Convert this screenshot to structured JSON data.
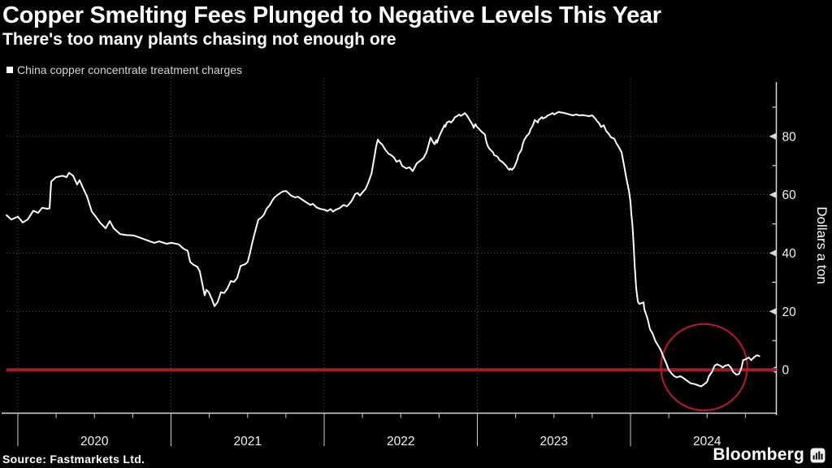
{
  "header": {
    "title": "Copper Smelting Fees Plunged to Negative Levels This Year",
    "subtitle": "There's too many plants chasing not enough ore"
  },
  "legend": {
    "series_label": "China copper concentrate treatment charges"
  },
  "footer": {
    "source_label": "Source: Fastmarkets Ltd.",
    "brand_label": "Bloomberg"
  },
  "colors": {
    "background": "#000000",
    "series_line": "#ffffff",
    "zero_line": "#a3182b",
    "annotation_circle": "#bc1636",
    "grid": "#4e4e4e",
    "axis": "#d9d9d9",
    "tick_label": "#f2f2f2",
    "year_tick": "#cfcfcf"
  },
  "chart_data": {
    "type": "line",
    "title": "China copper concentrate treatment charges",
    "xlabel": "",
    "ylabel": "Dollars a ton",
    "x_range": [
      2019.926,
      2024.952
    ],
    "y_range": [
      -14.86,
      100
    ],
    "y_ticks": [
      0,
      20,
      40,
      60,
      80
    ],
    "y_minor_ticks": [
      10,
      30,
      50,
      70,
      90
    ],
    "x_year_ticks": [
      2020,
      2021,
      2022,
      2023,
      2024
    ],
    "x_tick_labels": [
      "2020",
      "2021",
      "2022",
      "2023",
      "2024"
    ],
    "grid": "dotted",
    "legend_position": "top-left",
    "zero_line": {
      "value": 0
    },
    "annotation_circle": {
      "x": 2024.48,
      "y": 0.9,
      "radius_y_units": 14.8
    },
    "series": [
      {
        "name": "China copper concentrate treatment charges",
        "points": [
          [
            2019.926,
            53
          ],
          [
            2019.958,
            51.5
          ],
          [
            2020.0,
            52.5
          ],
          [
            2020.032,
            50.5
          ],
          [
            2020.064,
            51.5
          ],
          [
            2020.101,
            54.5
          ],
          [
            2020.133,
            53.8
          ],
          [
            2020.159,
            55.5
          ],
          [
            2020.191,
            55.2
          ],
          [
            2020.207,
            55.3
          ],
          [
            2020.218,
            64.5
          ],
          [
            2020.249,
            66
          ],
          [
            2020.292,
            66.5
          ],
          [
            2020.318,
            66
          ],
          [
            2020.334,
            67.5
          ],
          [
            2020.361,
            66.5
          ],
          [
            2020.387,
            63.5
          ],
          [
            2020.403,
            65
          ],
          [
            2020.424,
            62.5
          ],
          [
            2020.451,
            59.5
          ],
          [
            2020.483,
            54.2
          ],
          [
            2020.509,
            52.5
          ],
          [
            2020.536,
            50.5
          ],
          [
            2020.573,
            48.5
          ],
          [
            2020.6,
            51
          ],
          [
            2020.626,
            48.5
          ],
          [
            2020.668,
            46.5
          ],
          [
            2020.706,
            46.2
          ],
          [
            2020.759,
            46
          ],
          [
            2020.785,
            45.5
          ],
          [
            2020.838,
            44.5
          ],
          [
            2020.891,
            43.5
          ],
          [
            2020.923,
            44
          ],
          [
            2020.971,
            43.2
          ],
          [
            2021.003,
            43.5
          ],
          [
            2021.05,
            43
          ],
          [
            2021.082,
            41.5
          ],
          [
            2021.109,
            40.8
          ],
          [
            2021.125,
            37
          ],
          [
            2021.146,
            36
          ],
          [
            2021.172,
            35.3
          ],
          [
            2021.188,
            33.7
          ],
          [
            2021.204,
            29.6
          ],
          [
            2021.22,
            25.5
          ],
          [
            2021.231,
            27.4
          ],
          [
            2021.247,
            26.6
          ],
          [
            2021.268,
            24.1
          ],
          [
            2021.284,
            21.8
          ],
          [
            2021.305,
            23.3
          ],
          [
            2021.326,
            26.6
          ],
          [
            2021.347,
            26.3
          ],
          [
            2021.369,
            27.9
          ],
          [
            2021.39,
            30.4
          ],
          [
            2021.411,
            30.1
          ],
          [
            2021.432,
            31.5
          ],
          [
            2021.454,
            35.6
          ],
          [
            2021.485,
            36.2
          ],
          [
            2021.501,
            37
          ],
          [
            2021.517,
            40.3
          ],
          [
            2021.528,
            43
          ],
          [
            2021.544,
            46.3
          ],
          [
            2021.57,
            51.4
          ],
          [
            2021.592,
            52.3
          ],
          [
            2021.607,
            53.2
          ],
          [
            2021.623,
            55.1
          ],
          [
            2021.645,
            56.5
          ],
          [
            2021.66,
            57.9
          ],
          [
            2021.676,
            59.1
          ],
          [
            2021.703,
            60.2
          ],
          [
            2021.729,
            61.1
          ],
          [
            2021.751,
            61.3
          ],
          [
            2021.766,
            60.6
          ],
          [
            2021.783,
            59.7
          ],
          [
            2021.809,
            59.1
          ],
          [
            2021.83,
            59.3
          ],
          [
            2021.857,
            58.3
          ],
          [
            2021.883,
            57.4
          ],
          [
            2021.91,
            56.5
          ],
          [
            2021.926,
            56.9
          ],
          [
            2021.952,
            55.6
          ],
          [
            2021.979,
            55.1
          ],
          [
            2022.005,
            54.8
          ],
          [
            2022.021,
            54.4
          ],
          [
            2022.042,
            55.1
          ],
          [
            2022.058,
            54.2
          ],
          [
            2022.074,
            54.8
          ],
          [
            2022.101,
            55.4
          ],
          [
            2022.127,
            56.5
          ],
          [
            2022.148,
            56
          ],
          [
            2022.164,
            56.9
          ],
          [
            2022.18,
            57.9
          ],
          [
            2022.202,
            60.2
          ],
          [
            2022.218,
            60.6
          ],
          [
            2022.233,
            59.7
          ],
          [
            2022.255,
            61.1
          ],
          [
            2022.27,
            62
          ],
          [
            2022.286,
            63.9
          ],
          [
            2022.308,
            67.1
          ],
          [
            2022.324,
            71.8
          ],
          [
            2022.339,
            76.5
          ],
          [
            2022.35,
            78.9
          ],
          [
            2022.361,
            78
          ],
          [
            2022.377,
            77.3
          ],
          [
            2022.398,
            75.5
          ],
          [
            2022.419,
            74.1
          ],
          [
            2022.44,
            73.5
          ],
          [
            2022.456,
            72.7
          ],
          [
            2022.472,
            71.3
          ],
          [
            2022.493,
            71.8
          ],
          [
            2022.509,
            69.9
          ],
          [
            2022.536,
            69
          ],
          [
            2022.557,
            69.4
          ],
          [
            2022.578,
            68.1
          ],
          [
            2022.605,
            70.8
          ],
          [
            2022.631,
            71.8
          ],
          [
            2022.647,
            72.5
          ],
          [
            2022.668,
            74.5
          ],
          [
            2022.684,
            77.5
          ],
          [
            2022.695,
            79.6
          ],
          [
            2022.711,
            78
          ],
          [
            2022.721,
            77.3
          ],
          [
            2022.732,
            78.7
          ],
          [
            2022.737,
            77.8
          ],
          [
            2022.748,
            79.6
          ],
          [
            2022.764,
            81.5
          ],
          [
            2022.785,
            83.8
          ],
          [
            2022.79,
            83.3
          ],
          [
            2022.801,
            84.7
          ],
          [
            2022.817,
            85.2
          ],
          [
            2022.828,
            84.7
          ],
          [
            2022.843,
            85.6
          ],
          [
            2022.854,
            86.6
          ],
          [
            2022.87,
            87
          ],
          [
            2022.881,
            87.5
          ],
          [
            2022.891,
            87
          ],
          [
            2022.907,
            87.5
          ],
          [
            2022.918,
            88
          ],
          [
            2022.934,
            87
          ],
          [
            2022.944,
            86.1
          ],
          [
            2022.96,
            84.7
          ],
          [
            2022.971,
            83.8
          ],
          [
            2022.976,
            82.9
          ],
          [
            2022.987,
            84.2
          ],
          [
            2022.997,
            83.3
          ],
          [
            2023.013,
            82.4
          ],
          [
            2023.029,
            81.5
          ],
          [
            2023.05,
            80.6
          ],
          [
            2023.056,
            78.7
          ],
          [
            2023.066,
            76.9
          ],
          [
            2023.077,
            75.9
          ],
          [
            2023.093,
            75
          ],
          [
            2023.103,
            74.5
          ],
          [
            2023.109,
            73.6
          ],
          [
            2023.13,
            73.1
          ],
          [
            2023.135,
            72.7
          ],
          [
            2023.146,
            71.8
          ],
          [
            2023.162,
            71.3
          ],
          [
            2023.172,
            70.8
          ],
          [
            2023.188,
            69.9
          ],
          [
            2023.199,
            69
          ],
          [
            2023.209,
            68.5
          ],
          [
            2023.215,
            69
          ],
          [
            2023.225,
            68.5
          ],
          [
            2023.241,
            69.4
          ],
          [
            2023.252,
            70.8
          ],
          [
            2023.262,
            72.2
          ],
          [
            2023.268,
            73.6
          ],
          [
            2023.278,
            74.5
          ],
          [
            2023.289,
            75.5
          ],
          [
            2023.294,
            76.9
          ],
          [
            2023.305,
            78.7
          ],
          [
            2023.316,
            79.6
          ],
          [
            2023.321,
            80.1
          ],
          [
            2023.332,
            80.6
          ],
          [
            2023.342,
            81.5
          ],
          [
            2023.347,
            82.4
          ],
          [
            2023.358,
            83.3
          ],
          [
            2023.369,
            84.7
          ],
          [
            2023.374,
            85.6
          ],
          [
            2023.385,
            85.2
          ],
          [
            2023.395,
            84.7
          ],
          [
            2023.4,
            85.6
          ],
          [
            2023.422,
            86.6
          ],
          [
            2023.427,
            86.1
          ],
          [
            2023.448,
            86.6
          ],
          [
            2023.454,
            87
          ],
          [
            2023.475,
            87.5
          ],
          [
            2023.491,
            88
          ],
          [
            2023.501,
            87.5
          ],
          [
            2023.517,
            88
          ],
          [
            2023.533,
            88.4
          ],
          [
            2023.544,
            88.2
          ],
          [
            2023.56,
            88.1
          ],
          [
            2023.581,
            87.8
          ],
          [
            2023.602,
            87.5
          ],
          [
            2023.623,
            87.2
          ],
          [
            2023.645,
            87.5
          ],
          [
            2023.666,
            87.2
          ],
          [
            2023.687,
            87.3
          ],
          [
            2023.708,
            87.1
          ],
          [
            2023.729,
            86.9
          ],
          [
            2023.75,
            87.2
          ],
          [
            2023.772,
            86
          ],
          [
            2023.782,
            85.2
          ],
          [
            2023.793,
            84.6
          ],
          [
            2023.809,
            83.2
          ],
          [
            2023.825,
            83.8
          ],
          [
            2023.841,
            81.8
          ],
          [
            2023.856,
            81
          ],
          [
            2023.872,
            79.7
          ],
          [
            2023.894,
            79.2
          ],
          [
            2023.909,
            77.5
          ],
          [
            2023.925,
            76.2
          ],
          [
            2023.942,
            74.5
          ],
          [
            2023.958,
            70
          ],
          [
            2023.968,
            67
          ],
          [
            2023.979,
            64
          ],
          [
            2023.989,
            61.5
          ],
          [
            2024.0,
            57.5
          ],
          [
            2024.005,
            53.5
          ],
          [
            2024.011,
            50.5
          ],
          [
            2024.016,
            47
          ],
          [
            2024.021,
            42
          ],
          [
            2024.027,
            36
          ],
          [
            2024.037,
            28
          ],
          [
            2024.048,
            23.3
          ],
          [
            2024.058,
            22.6
          ],
          [
            2024.074,
            22.9
          ],
          [
            2024.085,
            23.1
          ],
          [
            2024.09,
            20.8
          ],
          [
            2024.111,
            17.5
          ],
          [
            2024.127,
            13.9
          ],
          [
            2024.143,
            12.5
          ],
          [
            2024.164,
            9.7
          ],
          [
            2024.18,
            8.3
          ],
          [
            2024.196,
            6.9
          ],
          [
            2024.217,
            4.2
          ],
          [
            2024.233,
            2.2
          ],
          [
            2024.249,
            0
          ],
          [
            2024.27,
            -1.4
          ],
          [
            2024.286,
            -2.2
          ],
          [
            2024.302,
            -2.6
          ],
          [
            2024.323,
            -2.2
          ],
          [
            2024.339,
            -2.6
          ],
          [
            2024.366,
            -3.6
          ],
          [
            2024.392,
            -4.6
          ],
          [
            2024.419,
            -4.9
          ],
          [
            2024.445,
            -5.4
          ],
          [
            2024.461,
            -5.7
          ],
          [
            2024.482,
            -4.9
          ],
          [
            2024.499,
            -4.2
          ],
          [
            2024.512,
            -2.2
          ],
          [
            2024.533,
            -0.6
          ],
          [
            2024.549,
            1.4
          ],
          [
            2024.565,
            1.9
          ],
          [
            2024.586,
            1.4
          ],
          [
            2024.602,
            0.8
          ],
          [
            2024.618,
            1.4
          ],
          [
            2024.639,
            1.7
          ],
          [
            2024.655,
            0.8
          ],
          [
            2024.671,
            -0.8
          ],
          [
            2024.692,
            -1.7
          ],
          [
            2024.708,
            -1.4
          ],
          [
            2024.724,
            0.6
          ],
          [
            2024.735,
            3.3
          ],
          [
            2024.751,
            3.6
          ],
          [
            2024.772,
            4.2
          ],
          [
            2024.788,
            3.3
          ],
          [
            2024.804,
            4.2
          ],
          [
            2024.825,
            5
          ],
          [
            2024.841,
            4.7
          ]
        ]
      }
    ]
  }
}
